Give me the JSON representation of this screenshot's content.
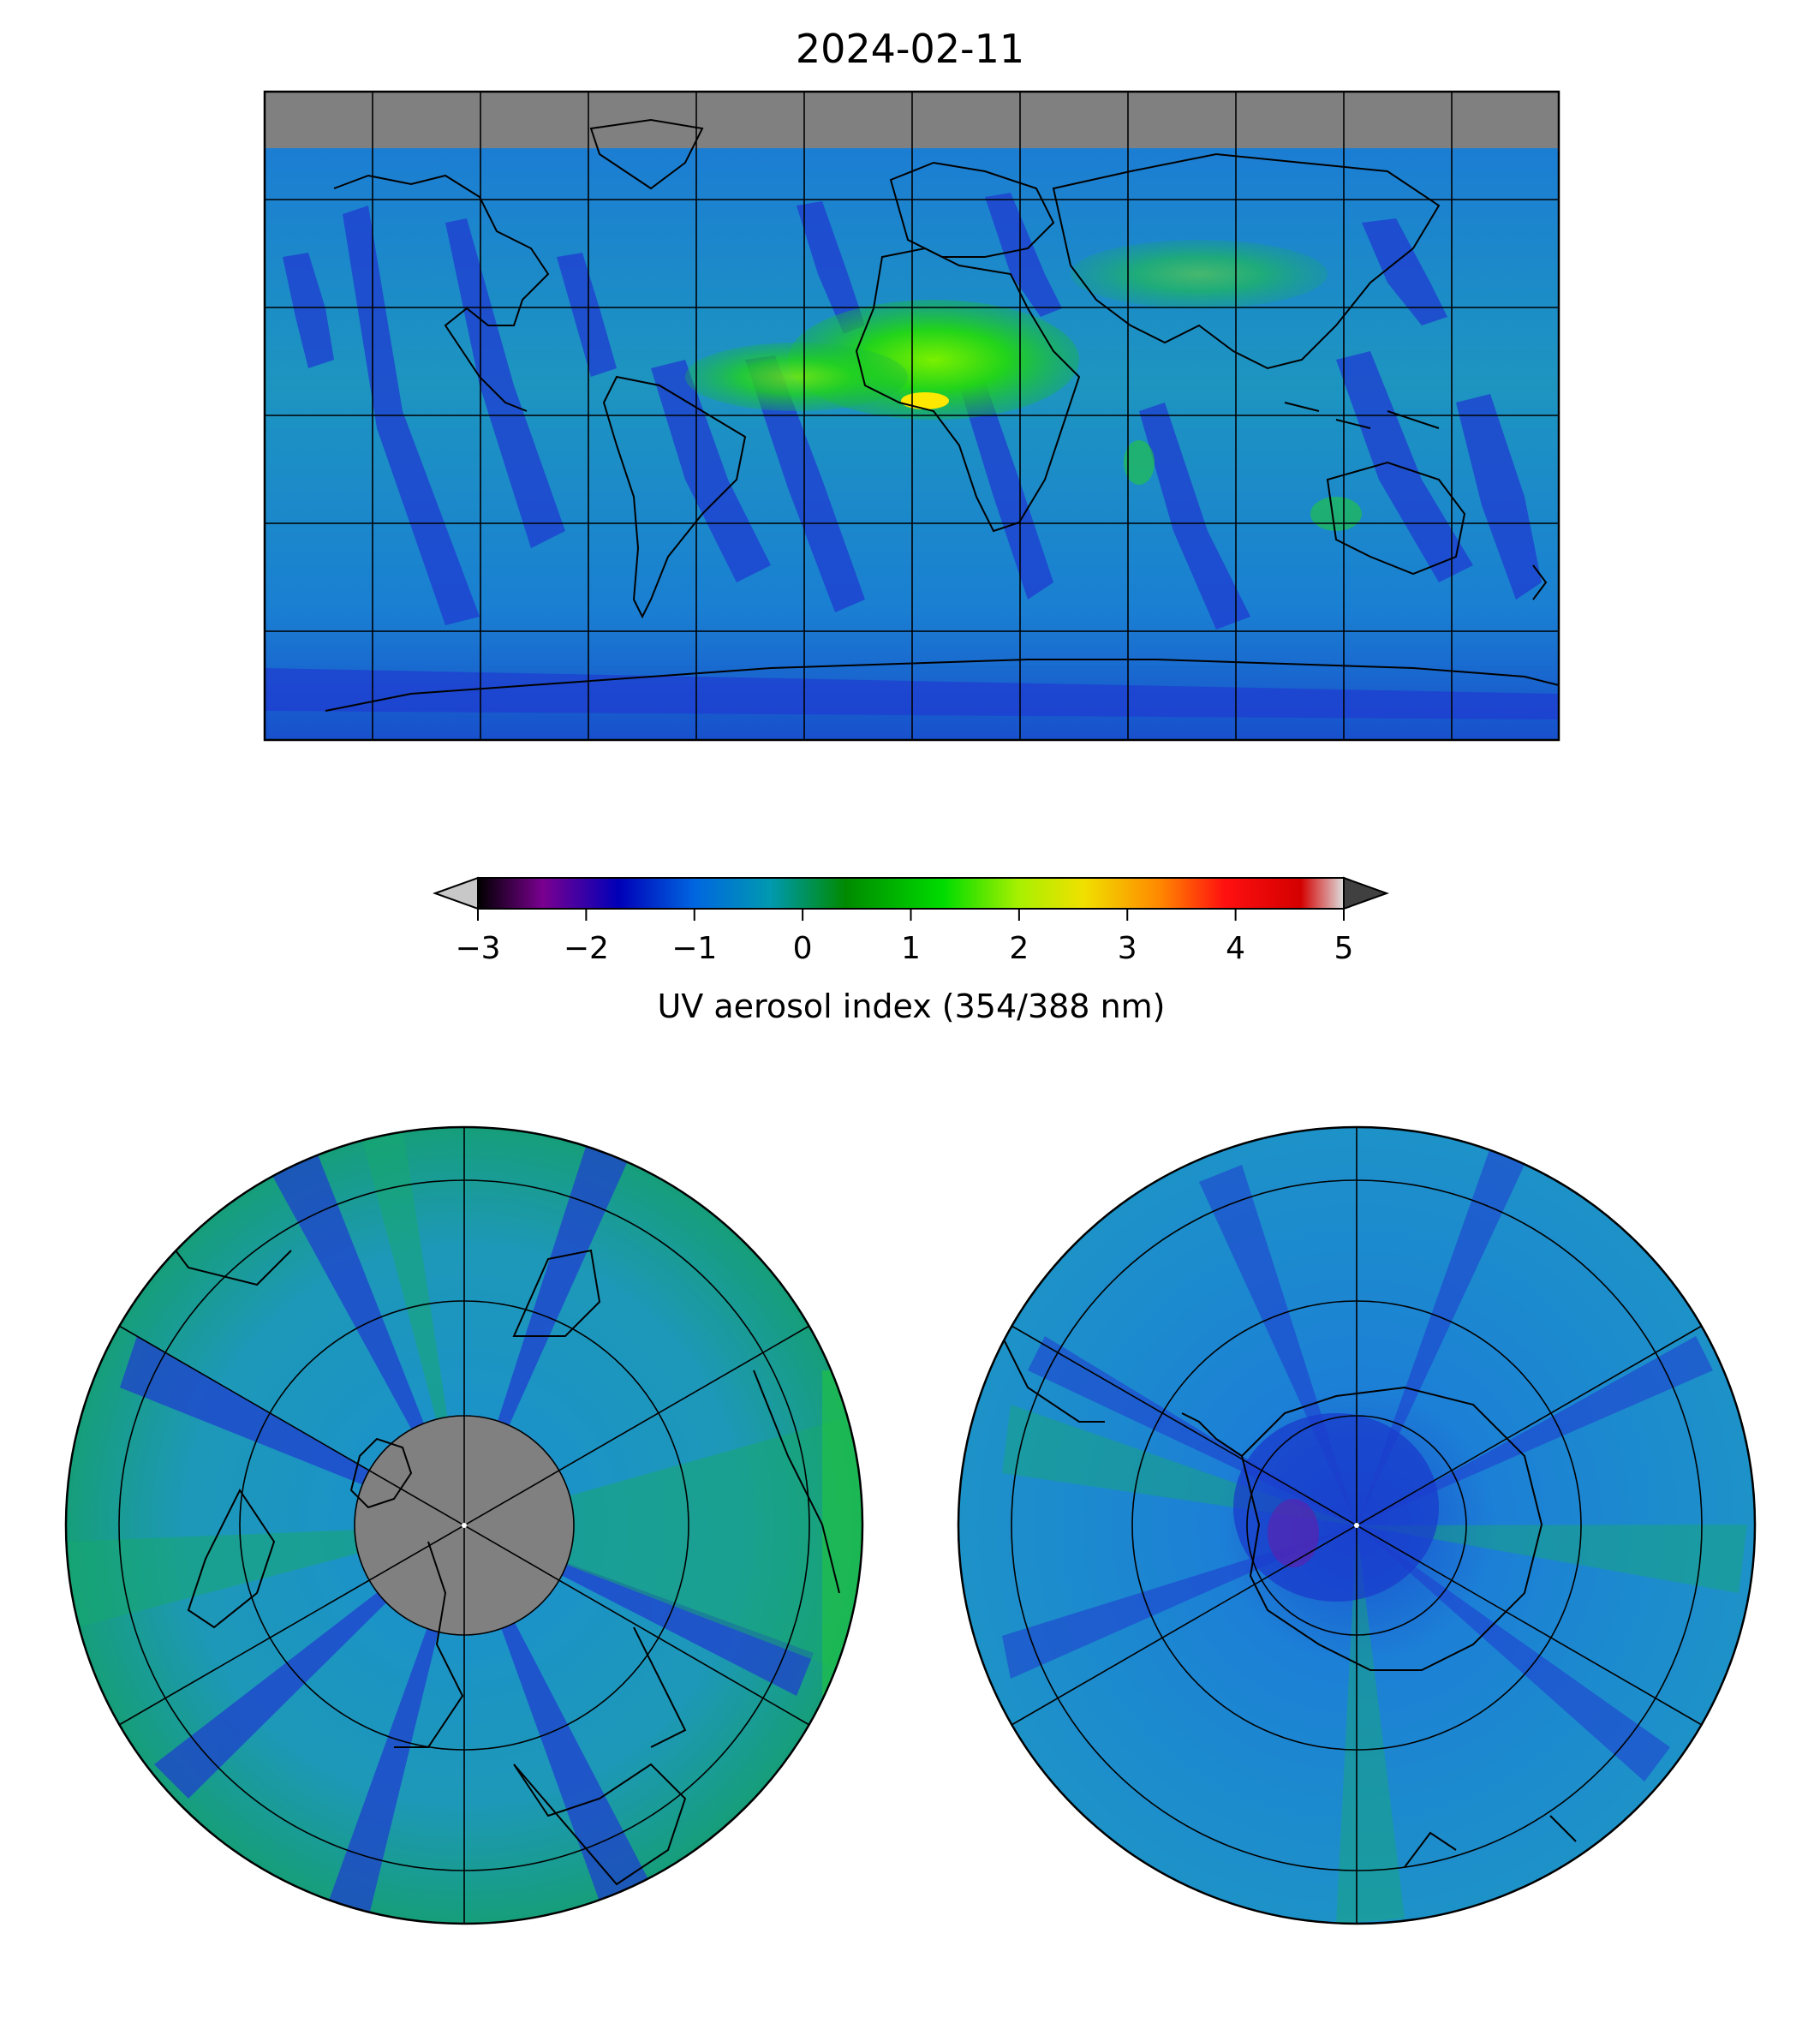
{
  "title": "2024-02-11",
  "colorbar": {
    "label": "UV aerosol index (354/388 nm)",
    "ticks": [
      "−3",
      "−2",
      "−1",
      "0",
      "1",
      "2",
      "3",
      "4",
      "5"
    ],
    "tick_values": [
      -3,
      -2,
      -1,
      0,
      1,
      2,
      3,
      4,
      5
    ],
    "range": [
      -3,
      5
    ],
    "extend": "both",
    "under_color": "#c8c8c8",
    "over_color": "#404040",
    "stops": [
      {
        "v": -3.0,
        "c": "#000000"
      },
      {
        "v": -2.4,
        "c": "#7a0090"
      },
      {
        "v": -1.7,
        "c": "#0000b8"
      },
      {
        "v": -1.0,
        "c": "#0066e0"
      },
      {
        "v": -0.3,
        "c": "#0099b0"
      },
      {
        "v": 0.4,
        "c": "#008a00"
      },
      {
        "v": 1.3,
        "c": "#00dc00"
      },
      {
        "v": 2.0,
        "c": "#a8f000"
      },
      {
        "v": 2.6,
        "c": "#f0e000"
      },
      {
        "v": 3.3,
        "c": "#ff8800"
      },
      {
        "v": 3.9,
        "c": "#ff1010"
      },
      {
        "v": 4.6,
        "c": "#d40000"
      },
      {
        "v": 5.0,
        "c": "#dddddd"
      }
    ]
  },
  "maps": {
    "global": {
      "projection": "plate carrée",
      "gridlines": true,
      "missing_data_color": "#808080"
    },
    "north_polar": {
      "projection": "north polar stereographic",
      "gridlines": true,
      "missing_data_color": "#808080"
    },
    "south_polar": {
      "projection": "south polar stereographic",
      "gridlines": true
    }
  },
  "colors": {
    "ocean_base": "#1c8fd0",
    "swath_low": "#1f3bd0",
    "swath_mid": "#1aa08a",
    "dust_high": "#22d41a",
    "dust_peak": "#ffe800",
    "coastline": "#000000",
    "gridline": "#000000",
    "missing": "#808080"
  }
}
